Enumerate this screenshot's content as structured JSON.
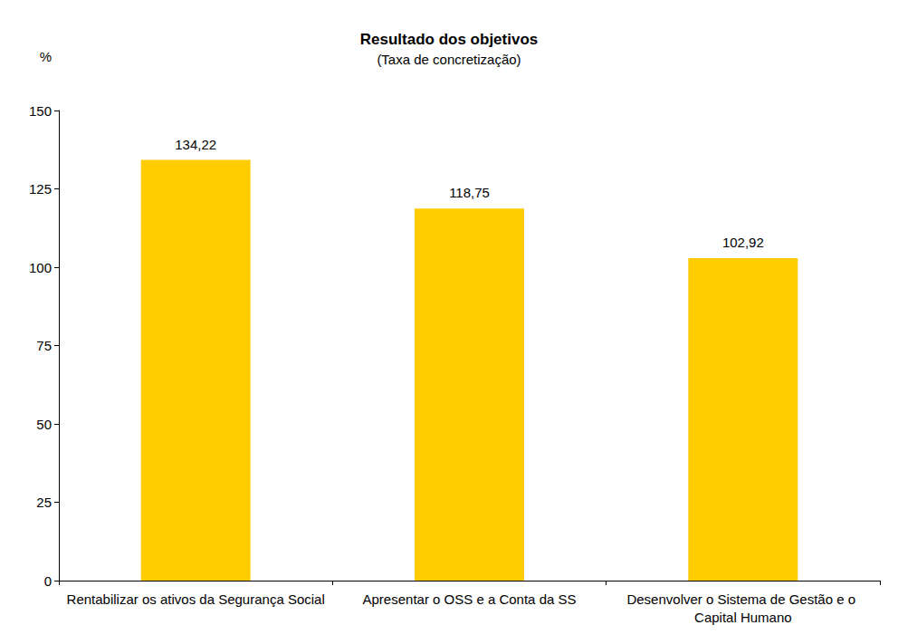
{
  "chart_data": {
    "type": "bar",
    "title": "Resultado dos objetivos",
    "subtitle": "(Taxa de concretização)",
    "y_label": "%",
    "categories": [
      "Rentabilizar os ativos da Segurança Social",
      "Apresentar o OSS e a Conta da SS",
      "Desenvolver o Sistema de Gestão e o Capital Humano"
    ],
    "values": [
      134.22,
      118.75,
      102.92
    ],
    "value_labels": [
      "134,22",
      "118,75",
      "102,92"
    ],
    "data_labels": true,
    "color": "#ffcc00",
    "ylim": [
      0,
      150
    ],
    "yticks": [
      0,
      25,
      50,
      75,
      100,
      125,
      150
    ],
    "grid": false
  }
}
